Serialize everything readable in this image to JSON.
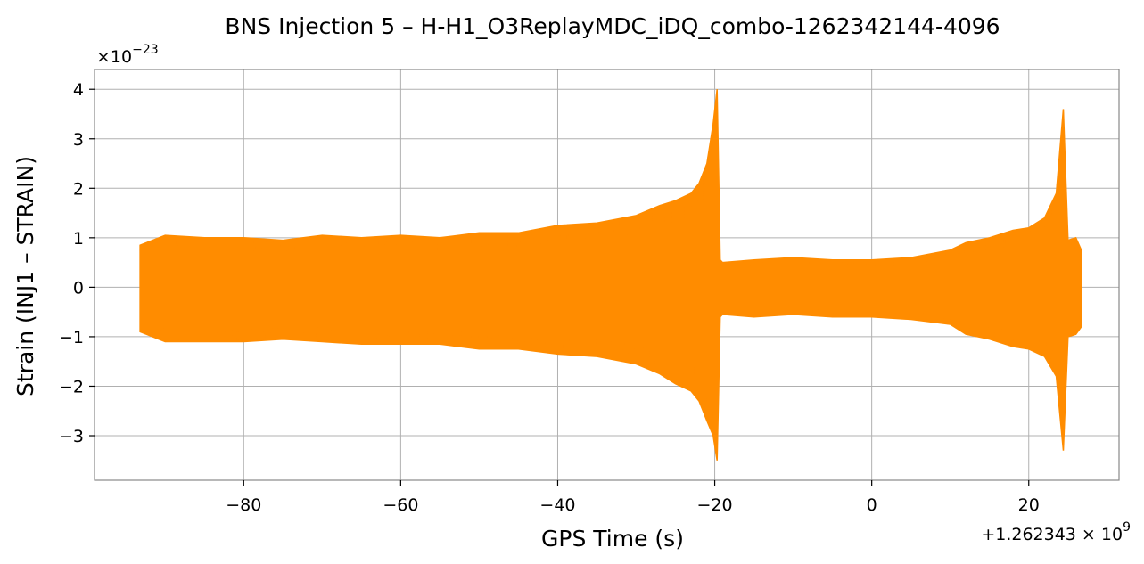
{
  "chart_data": {
    "type": "line",
    "title": "BNS Injection 5 – H-H1_O3ReplayMDC_iDQ_combo-1262342144-4096",
    "xlabel": "GPS Time (s)",
    "ylabel": "Strain (INJ1 – STRAIN)",
    "x_offset_text": "+1.262343 × 10",
    "x_offset_exponent": "9",
    "y_scale_text": "×10",
    "y_scale_exponent": "−23",
    "xlim": [
      -99.0,
      31.5
    ],
    "ylim": [
      -3.9,
      4.4
    ],
    "x_ticks": [
      -80,
      -60,
      -40,
      -20,
      0,
      20
    ],
    "x_tick_labels": [
      "−80",
      "−60",
      "−40",
      "−20",
      "0",
      "20"
    ],
    "y_ticks": [
      -3,
      -2,
      -1,
      0,
      1,
      2,
      3,
      4
    ],
    "y_tick_labels": [
      "−3",
      "−2",
      "−1",
      "0",
      "1",
      "2",
      "3",
      "4"
    ],
    "grid": true,
    "series": [
      {
        "color": "#ff8c00",
        "x": [
          -93.2,
          -90,
          -85,
          -80,
          -75,
          -70,
          -65,
          -60,
          -55,
          -50,
          -45,
          -40,
          -35,
          -30,
          -27,
          -25,
          -23,
          -22,
          -21,
          -20.2,
          -19.7,
          -19.3,
          -19.0,
          -15,
          -10,
          -5,
          0,
          5,
          10,
          12,
          15,
          18,
          20,
          22,
          23.5,
          24.4,
          25,
          26.0,
          26.7
        ],
        "upper": [
          0.85,
          1.05,
          1.0,
          1.0,
          0.95,
          1.05,
          1.0,
          1.05,
          1.0,
          1.1,
          1.1,
          1.25,
          1.3,
          1.45,
          1.65,
          1.75,
          1.9,
          2.1,
          2.5,
          3.3,
          4.0,
          0.55,
          0.5,
          0.55,
          0.6,
          0.55,
          0.55,
          0.6,
          0.75,
          0.9,
          1.0,
          1.15,
          1.2,
          1.4,
          1.9,
          3.6,
          0.95,
          1.0,
          0.75
        ],
        "lower": [
          -0.9,
          -1.1,
          -1.1,
          -1.1,
          -1.05,
          -1.1,
          -1.15,
          -1.15,
          -1.15,
          -1.25,
          -1.25,
          -1.35,
          -1.4,
          -1.55,
          -1.75,
          -1.95,
          -2.1,
          -2.3,
          -2.7,
          -3.0,
          -3.5,
          -0.6,
          -0.55,
          -0.6,
          -0.55,
          -0.6,
          -0.6,
          -0.65,
          -0.75,
          -0.95,
          -1.05,
          -1.2,
          -1.25,
          -1.4,
          -1.8,
          -3.3,
          -1.0,
          -0.95,
          -0.8
        ]
      }
    ]
  }
}
